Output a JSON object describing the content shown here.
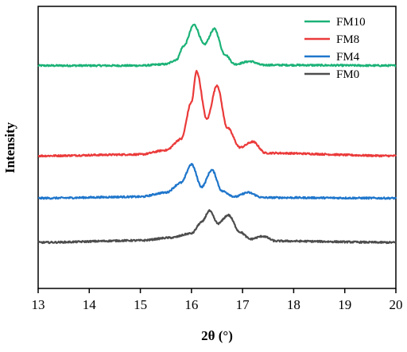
{
  "chart_data": {
    "type": "line",
    "xlabel": "2θ (°)",
    "ylabel": "Intensity",
    "xlim": [
      13,
      20
    ],
    "x_ticks": [
      13,
      14,
      15,
      16,
      17,
      18,
      19,
      20
    ],
    "x_tick_labels": [
      "13",
      "14",
      "15",
      "16",
      "17",
      "18",
      "19",
      "20"
    ],
    "y_ticks_shown": false,
    "grid": false,
    "legend_position": "top-right",
    "series": [
      {
        "name": "FM10",
        "color": "#1BB277",
        "baseline": 0.79,
        "points": [
          [
            13.0,
            0.79
          ],
          [
            15.0,
            0.79
          ],
          [
            15.5,
            0.795
          ],
          [
            15.7,
            0.81
          ],
          [
            15.85,
            0.86
          ],
          [
            16.05,
            0.935
          ],
          [
            16.25,
            0.865
          ],
          [
            16.45,
            0.92
          ],
          [
            16.65,
            0.83
          ],
          [
            16.85,
            0.795
          ],
          [
            17.15,
            0.805
          ],
          [
            17.4,
            0.792
          ],
          [
            20.0,
            0.79
          ]
        ]
      },
      {
        "name": "FM8",
        "color": "#EB3A3A",
        "baseline": 0.47,
        "points": [
          [
            13.0,
            0.47
          ],
          [
            15.0,
            0.475
          ],
          [
            15.5,
            0.49
          ],
          [
            15.8,
            0.53
          ],
          [
            16.0,
            0.66
          ],
          [
            16.1,
            0.77
          ],
          [
            16.3,
            0.6
          ],
          [
            16.5,
            0.72
          ],
          [
            16.7,
            0.57
          ],
          [
            16.95,
            0.5
          ],
          [
            17.2,
            0.52
          ],
          [
            17.45,
            0.48
          ],
          [
            20.0,
            0.47
          ]
        ]
      },
      {
        "name": "FM4",
        "color": "#1F76CB",
        "baseline": 0.32,
        "points": [
          [
            13.0,
            0.32
          ],
          [
            15.0,
            0.325
          ],
          [
            15.5,
            0.34
          ],
          [
            15.8,
            0.375
          ],
          [
            16.0,
            0.44
          ],
          [
            16.2,
            0.36
          ],
          [
            16.4,
            0.42
          ],
          [
            16.6,
            0.345
          ],
          [
            16.85,
            0.325
          ],
          [
            17.1,
            0.34
          ],
          [
            17.4,
            0.322
          ],
          [
            20.0,
            0.32
          ]
        ]
      },
      {
        "name": "FM0",
        "color": "#4D4D4D",
        "baseline": 0.163,
        "points": [
          [
            13.0,
            0.163
          ],
          [
            15.0,
            0.17
          ],
          [
            15.6,
            0.18
          ],
          [
            16.0,
            0.195
          ],
          [
            16.2,
            0.235
          ],
          [
            16.35,
            0.275
          ],
          [
            16.52,
            0.23
          ],
          [
            16.72,
            0.26
          ],
          [
            16.95,
            0.2
          ],
          [
            17.15,
            0.175
          ],
          [
            17.4,
            0.185
          ],
          [
            17.65,
            0.168
          ],
          [
            20.0,
            0.163
          ]
        ]
      }
    ]
  }
}
